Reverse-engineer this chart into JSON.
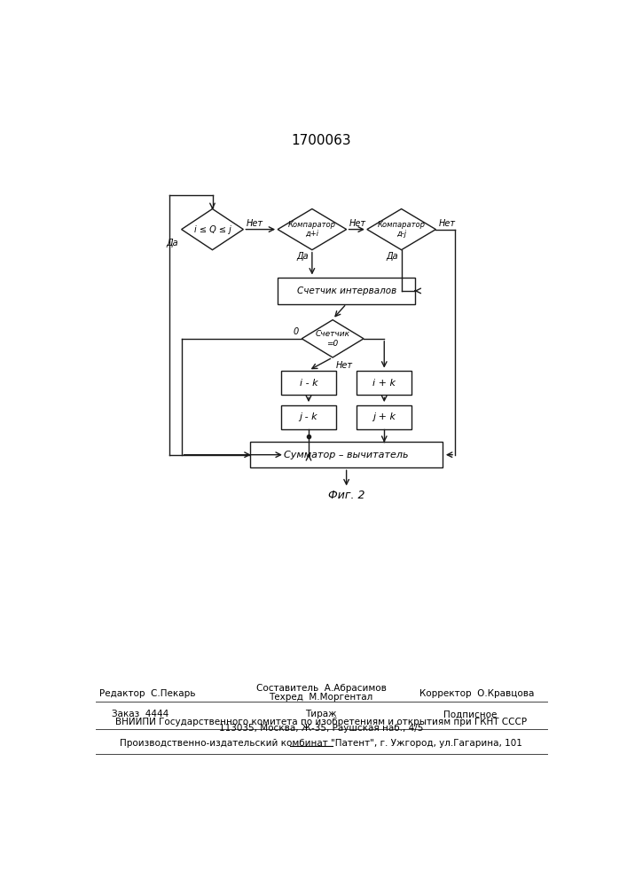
{
  "title": "1700063",
  "fig_label": "Фиг. 2",
  "bg_color": "#ffffff",
  "line_color": "#1a1a1a",
  "footer": {
    "line1_left": "Редактор  С.Пекарь",
    "line1_center_top": "Составитель  А.Абрасимов",
    "line1_center_bot": "Техред  М.Моргентал",
    "line1_right": "Корректор  О.Кравцова",
    "line2_left": "Заказ  4444",
    "line2_center": "Тираж",
    "line2_right": "Подписное",
    "line3": "ВНИИПИ Государственного комитета по изобретениям и открытиям при ГКНТ СССР",
    "line4": "113035, Москва, Ж-35, Раушская наб., 4/5",
    "line5": "Производственно-издательский комбинат \"Патент\", г. Ужгород, ул.Гагарина, 101"
  }
}
